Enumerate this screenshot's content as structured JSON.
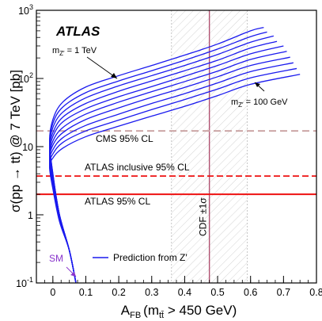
{
  "chart_data": {
    "type": "line",
    "logo": "ATLAS",
    "xlabel_main": "A",
    "xlabel_sub": "FB",
    "xlabel_rest": "(m",
    "xlabel_mass_sub": "tt̄",
    "xlabel_tail": " > 450 GeV)",
    "ylabel": "σ(pp → tt) @ 7 TeV [pb]",
    "xlim": [
      -0.05,
      0.8
    ],
    "ylim": [
      0.1,
      1000
    ],
    "yscale": "log",
    "x_ticks": [
      {
        "value": 0,
        "label": "0"
      },
      {
        "value": 0.1,
        "label": "0.1"
      },
      {
        "value": 0.2,
        "label": "0.2"
      },
      {
        "value": 0.3,
        "label": "0.3"
      },
      {
        "value": 0.4,
        "label": "0.4"
      },
      {
        "value": 0.5,
        "label": "0.5"
      },
      {
        "value": 0.6,
        "label": "0.6"
      },
      {
        "value": 0.7,
        "label": "0.7"
      },
      {
        "value": 0.8,
        "label": "0.8"
      }
    ],
    "y_ticks": [
      {
        "value": 0.1,
        "base": "10",
        "exp": "-1"
      },
      {
        "value": 1,
        "base": "1",
        "exp": ""
      },
      {
        "value": 10,
        "base": "10",
        "exp": ""
      },
      {
        "value": 100,
        "base": "10",
        "exp": "2"
      },
      {
        "value": 1000,
        "base": "10",
        "exp": "3"
      }
    ],
    "hlines": [
      {
        "value": 17,
        "label": "CMS 95% CL",
        "color": "#c8a0a0",
        "dash": "dashed"
      },
      {
        "value": 3.7,
        "label": "ATLAS inclusive 95% CL",
        "color": "#ee1111",
        "dash": "dashed"
      },
      {
        "value": 2.0,
        "label": "ATLAS 95% CL",
        "color": "#ee1111",
        "dash": "solid"
      }
    ],
    "cdf_band": {
      "center": 0.475,
      "low": 0.36,
      "high": 0.59,
      "label": "CDF ±1σ",
      "color": "#b05070"
    },
    "sm_label": "SM",
    "sm_color": "#8833cc",
    "curve_color": "#1a1aee",
    "legend_label": "Prediction from Z′",
    "annotation_top": {
      "prefix": "m",
      "sub": "Z′",
      "suffix": " = 1 TeV"
    },
    "annotation_bottom": {
      "prefix": "m",
      "sub": "Z′",
      "suffix": " = 100 GeV"
    },
    "curves": [
      {
        "name": "m_Z' = 1 TeV",
        "x": [
          0.07,
          0.05,
          0.02,
          0.0,
          -0.01,
          0.0,
          0.03,
          0.1,
          0.2,
          0.3,
          0.4,
          0.5,
          0.6,
          0.64
        ],
        "y": [
          0.1,
          0.3,
          1.0,
          4.0,
          12,
          25,
          45,
          75,
          110,
          155,
          220,
          320,
          500,
          560
        ]
      },
      {
        "x": [
          0.07,
          0.05,
          0.02,
          0.0,
          -0.01,
          0.0,
          0.03,
          0.1,
          0.2,
          0.3,
          0.4,
          0.5,
          0.6,
          0.65
        ],
        "y": [
          0.1,
          0.3,
          1.0,
          4.0,
          11,
          22,
          38,
          62,
          92,
          130,
          185,
          270,
          410,
          480
        ]
      },
      {
        "x": [
          0.07,
          0.05,
          0.02,
          0.0,
          -0.01,
          0.0,
          0.03,
          0.1,
          0.2,
          0.3,
          0.4,
          0.5,
          0.6,
          0.67
        ],
        "y": [
          0.1,
          0.3,
          1.0,
          3.8,
          10,
          19,
          32,
          52,
          78,
          110,
          155,
          225,
          340,
          420
        ]
      },
      {
        "x": [
          0.07,
          0.05,
          0.02,
          0.0,
          -0.01,
          0.0,
          0.03,
          0.1,
          0.2,
          0.3,
          0.4,
          0.5,
          0.6,
          0.68
        ],
        "y": [
          0.1,
          0.3,
          1.0,
          3.6,
          9,
          16,
          27,
          43,
          65,
          92,
          130,
          185,
          280,
          350
        ]
      },
      {
        "x": [
          0.07,
          0.05,
          0.02,
          0.0,
          -0.01,
          0.0,
          0.03,
          0.1,
          0.2,
          0.3,
          0.4,
          0.5,
          0.6,
          0.7
        ],
        "y": [
          0.1,
          0.3,
          1.0,
          3.4,
          8,
          14,
          23,
          36,
          54,
          76,
          108,
          155,
          230,
          300
        ]
      },
      {
        "x": [
          0.07,
          0.05,
          0.02,
          0.0,
          -0.01,
          0.0,
          0.03,
          0.1,
          0.2,
          0.3,
          0.4,
          0.5,
          0.6,
          0.71
        ],
        "y": [
          0.1,
          0.3,
          0.95,
          3.2,
          7,
          12,
          19,
          30,
          45,
          64,
          90,
          128,
          190,
          250
        ]
      },
      {
        "x": [
          0.07,
          0.05,
          0.02,
          0.0,
          -0.01,
          0.0,
          0.03,
          0.1,
          0.2,
          0.3,
          0.4,
          0.5,
          0.6,
          0.72
        ],
        "y": [
          0.1,
          0.3,
          0.9,
          3.0,
          6.5,
          10.5,
          16,
          25,
          37,
          53,
          74,
          106,
          155,
          205
        ]
      },
      {
        "x": [
          0.07,
          0.05,
          0.02,
          0.0,
          -0.01,
          0.0,
          0.03,
          0.1,
          0.2,
          0.3,
          0.4,
          0.5,
          0.6,
          0.73
        ],
        "y": [
          0.1,
          0.3,
          0.9,
          2.8,
          6.0,
          9.0,
          13.5,
          20.5,
          30,
          43,
          60,
          86,
          126,
          170
        ]
      },
      {
        "x": [
          0.07,
          0.05,
          0.02,
          0.0,
          -0.01,
          0.0,
          0.03,
          0.1,
          0.2,
          0.3,
          0.4,
          0.5,
          0.6,
          0.74
        ],
        "y": [
          0.1,
          0.3,
          0.85,
          2.6,
          5.5,
          7.8,
          11.5,
          17,
          24.5,
          35,
          49,
          70,
          102,
          140
        ]
      },
      {
        "name": "m_Z' = 100 GeV",
        "x": [
          0.07,
          0.05,
          0.02,
          0.0,
          -0.01,
          0.0,
          0.03,
          0.1,
          0.2,
          0.3,
          0.4,
          0.5,
          0.6,
          0.75
        ],
        "y": [
          0.1,
          0.3,
          0.8,
          2.4,
          5.0,
          6.8,
          9.5,
          14,
          20,
          28,
          39,
          56,
          82,
          115
        ]
      }
    ]
  }
}
